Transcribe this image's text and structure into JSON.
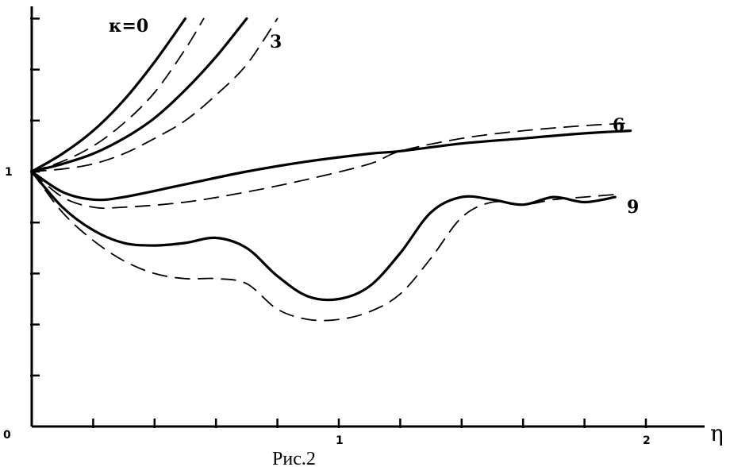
{
  "chart_data": {
    "type": "line",
    "caption": "Рис.2",
    "xlabel": "η",
    "origin_label": "0",
    "x_tick_labels": [
      {
        "value": 1,
        "label": "1"
      },
      {
        "value": 2,
        "label": "2"
      }
    ],
    "y_tick_labels": [
      {
        "value": 1,
        "label": "1"
      }
    ],
    "xlim": [
      0,
      2.2
    ],
    "ylim": [
      0,
      1.6
    ],
    "x_minor_ticks": [
      0.2,
      0.4,
      0.6,
      0.8,
      1.0,
      1.2,
      1.4,
      1.6,
      1.8,
      2.0
    ],
    "y_minor_ticks": [
      0.2,
      0.4,
      0.6,
      0.8,
      1.0,
      1.2,
      1.4,
      1.6
    ],
    "curve_labels": [
      {
        "text": "κ=0",
        "curve": 0
      },
      {
        "text": "3",
        "curve": 1
      },
      {
        "text": "6",
        "curve": 2
      },
      {
        "text": "9",
        "curve": 3
      }
    ],
    "series": [
      {
        "style": "solid",
        "curve": 0,
        "x": [
          0,
          0.1,
          0.2,
          0.3,
          0.4,
          0.5
        ],
        "y": [
          1.0,
          1.07,
          1.16,
          1.28,
          1.43,
          1.6
        ]
      },
      {
        "style": "dashed",
        "curve": 0,
        "x": [
          0,
          0.1,
          0.2,
          0.3,
          0.4,
          0.5,
          0.56
        ],
        "y": [
          1.0,
          1.04,
          1.1,
          1.19,
          1.31,
          1.48,
          1.6
        ]
      },
      {
        "style": "solid",
        "curve": 1,
        "x": [
          0,
          0.1,
          0.2,
          0.3,
          0.4,
          0.5,
          0.6,
          0.7
        ],
        "y": [
          1.0,
          1.03,
          1.07,
          1.13,
          1.21,
          1.32,
          1.45,
          1.6
        ]
      },
      {
        "style": "dashed",
        "curve": 1,
        "x": [
          0,
          0.1,
          0.2,
          0.3,
          0.4,
          0.5,
          0.6,
          0.7,
          0.8
        ],
        "y": [
          1.0,
          1.01,
          1.03,
          1.07,
          1.13,
          1.2,
          1.3,
          1.42,
          1.6
        ]
      },
      {
        "style": "solid",
        "curve": 2,
        "x": [
          0,
          0.1,
          0.2,
          0.3,
          0.5,
          0.7,
          0.9,
          1.1,
          1.2,
          1.4,
          1.6,
          1.8,
          1.95
        ],
        "y": [
          1.0,
          0.92,
          0.89,
          0.9,
          0.95,
          1.0,
          1.04,
          1.07,
          1.08,
          1.11,
          1.13,
          1.15,
          1.16
        ]
      },
      {
        "style": "dashed",
        "curve": 2,
        "x": [
          0,
          0.1,
          0.2,
          0.3,
          0.5,
          0.7,
          0.9,
          1.1,
          1.2,
          1.4,
          1.6,
          1.8,
          1.95
        ],
        "y": [
          1.0,
          0.9,
          0.86,
          0.86,
          0.88,
          0.92,
          0.97,
          1.03,
          1.08,
          1.13,
          1.16,
          1.18,
          1.19
        ]
      },
      {
        "style": "solid",
        "curve": 3,
        "x": [
          0,
          0.1,
          0.2,
          0.3,
          0.4,
          0.5,
          0.6,
          0.7,
          0.8,
          0.9,
          1.0,
          1.1,
          1.2,
          1.3,
          1.4,
          1.5,
          1.6,
          1.7,
          1.8,
          1.9
        ],
        "y": [
          1.0,
          0.86,
          0.77,
          0.72,
          0.71,
          0.72,
          0.74,
          0.7,
          0.59,
          0.51,
          0.5,
          0.55,
          0.68,
          0.84,
          0.9,
          0.89,
          0.87,
          0.9,
          0.88,
          0.9
        ]
      },
      {
        "style": "dashed",
        "curve": 3,
        "x": [
          0,
          0.1,
          0.2,
          0.3,
          0.4,
          0.5,
          0.6,
          0.7,
          0.8,
          0.9,
          1.0,
          1.1,
          1.2,
          1.3,
          1.4,
          1.5,
          1.6,
          1.7,
          1.8,
          1.9
        ],
        "y": [
          1.0,
          0.84,
          0.73,
          0.65,
          0.6,
          0.58,
          0.58,
          0.56,
          0.46,
          0.42,
          0.42,
          0.45,
          0.52,
          0.66,
          0.82,
          0.88,
          0.87,
          0.89,
          0.9,
          0.91
        ]
      }
    ]
  }
}
